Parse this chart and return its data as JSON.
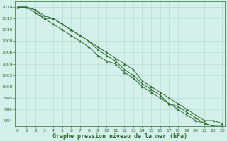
{
  "x": [
    0,
    1,
    2,
    3,
    4,
    5,
    6,
    7,
    8,
    9,
    10,
    11,
    12,
    13,
    14,
    15,
    16,
    17,
    18,
    19,
    20,
    21,
    22,
    23
  ],
  "line1": [
    1014,
    1014,
    1013.5,
    1012,
    1012,
    1011,
    1010,
    1009,
    1008,
    1007,
    1006,
    1005,
    1004,
    1003,
    1001,
    1000,
    999,
    998,
    997,
    996,
    995,
    994,
    994,
    993.5
  ],
  "line2": [
    1014,
    1014,
    1013.5,
    1012.5,
    1012,
    1011,
    1010,
    1009,
    1008,
    1006.5,
    1005.5,
    1004.5,
    1003,
    1002,
    1000.5,
    999.5,
    998.5,
    997,
    996,
    995,
    994,
    993.5,
    993,
    993
  ],
  "line3": [
    1014,
    1014,
    1013,
    1012,
    1011,
    1010,
    1009,
    1008,
    1007,
    1005.5,
    1004.5,
    1004,
    1002.5,
    1001.5,
    1000,
    999,
    998,
    997,
    996.5,
    995.5,
    994.5,
    993.5,
    993,
    992.5
  ],
  "bg_color": "#d4f0eb",
  "grid_color": "#b0d8cc",
  "line_color": "#2d6a2d",
  "marker": "^",
  "xlabel": "Graphe pression niveau de la mer (hPa)",
  "ylim": [
    993,
    1015
  ],
  "xlim": [
    -0.3,
    23.3
  ],
  "yticks": [
    994,
    996,
    998,
    1000,
    1002,
    1004,
    1006,
    1008,
    1010,
    1012,
    1014
  ],
  "xticks": [
    0,
    1,
    2,
    3,
    4,
    5,
    6,
    7,
    8,
    9,
    10,
    11,
    12,
    13,
    14,
    15,
    16,
    17,
    18,
    19,
    20,
    21,
    22,
    23
  ],
  "tick_fontsize": 4.5,
  "xlabel_fontsize": 6.0,
  "linewidth": 0.7,
  "markersize": 2.5
}
